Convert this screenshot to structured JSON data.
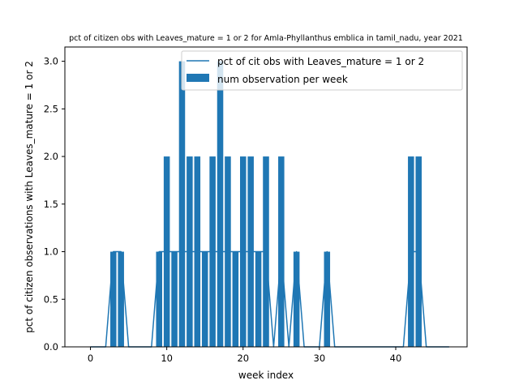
{
  "chart_data": {
    "type": "bar",
    "title": "pct of citizen obs with Leaves_mature = 1 or 2 for Amla-Phyllanthus emblica in tamil_nadu, year 2021",
    "xlabel": "week index",
    "ylabel": "pct of citizen observations with Leaves_mature = 1 or 2",
    "xlim": [
      -3.35,
      49.35
    ],
    "ylim": [
      0,
      3.15
    ],
    "xticks": [
      0,
      10,
      20,
      30,
      40
    ],
    "yticks": [
      0.0,
      0.5,
      1.0,
      1.5,
      2.0,
      2.5,
      3.0
    ],
    "ytick_labels": [
      "0.0",
      "0.5",
      "1.0",
      "1.5",
      "2.0",
      "2.5",
      "3.0"
    ],
    "legend_position": "upper right",
    "grid": false,
    "color": "#1f77b4",
    "x": [
      0,
      1,
      2,
      3,
      4,
      5,
      6,
      7,
      8,
      9,
      10,
      11,
      12,
      13,
      14,
      15,
      16,
      17,
      18,
      19,
      20,
      21,
      22,
      23,
      24,
      25,
      26,
      27,
      28,
      29,
      30,
      31,
      32,
      33,
      34,
      35,
      36,
      37,
      38,
      39,
      40,
      41,
      42,
      43,
      44,
      45,
      46,
      47
    ],
    "series": [
      {
        "name": "pct of cit obs with Leaves_mature = 1 or 2",
        "kind": "line",
        "values": [
          0,
          0,
          0,
          1,
          1,
          0,
          0,
          0,
          0,
          1,
          1,
          1,
          1,
          1,
          1,
          1,
          1,
          1,
          1,
          1,
          1,
          1,
          1,
          1,
          0,
          1,
          0,
          1,
          0,
          0,
          0,
          1,
          0,
          0,
          0,
          0,
          0,
          0,
          0,
          0,
          0,
          0,
          1,
          1,
          0,
          0,
          0,
          0
        ]
      },
      {
        "name": "num observation per week",
        "kind": "bar",
        "values": [
          0,
          0,
          0,
          1,
          1,
          0,
          0,
          0,
          0,
          1,
          2,
          1,
          3,
          2,
          2,
          1,
          2,
          3,
          2,
          1,
          2,
          2,
          1,
          2,
          0,
          2,
          0,
          1,
          0,
          0,
          0,
          1,
          0,
          0,
          0,
          0,
          0,
          0,
          0,
          0,
          0,
          0,
          2,
          2,
          0,
          0,
          0,
          0
        ]
      }
    ]
  }
}
